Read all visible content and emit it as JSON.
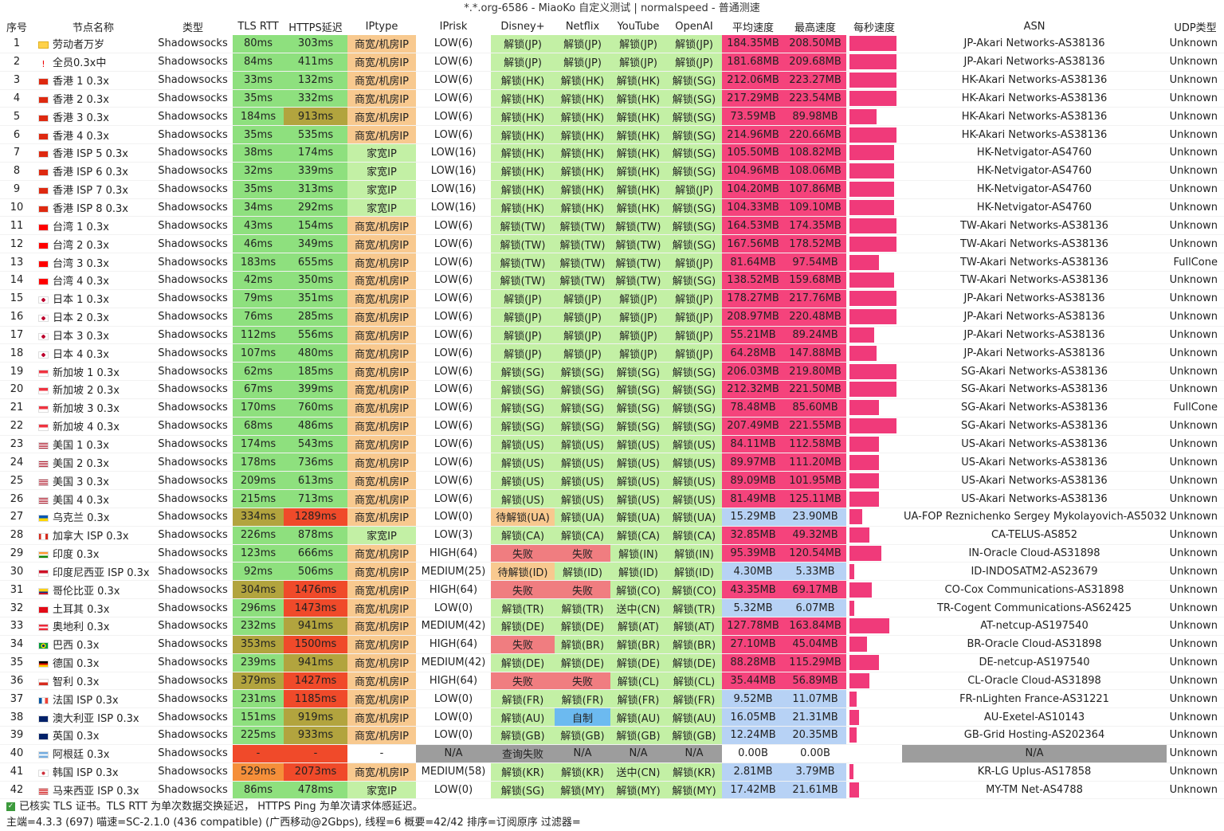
{
  "window": {
    "title": "*.*.org-6586 - MiaoKo 自定义测试 | normalspeed - 普通测速"
  },
  "headers": [
    "序号",
    "节点名称",
    "类型",
    "TLS RTT",
    "HTTPS延迟",
    "IPtype",
    "IPrisk",
    "Disney+",
    "Netflix",
    "YouTube",
    "OpenAI",
    "平均速度",
    "最高速度",
    "每秒速度",
    "ASN",
    "UDP类型"
  ],
  "colors": {
    "green": "#8ee07e",
    "light_green": "#c3f0a5",
    "orange_light": "#f8c98f",
    "orange": "#f58f3a",
    "red": "#f04a2a",
    "olive": "#b2a43e",
    "pink": "#f5437c",
    "light_blue": "#b7d2f5",
    "blue": "#6cbaf0",
    "fail_red": "#f07d80",
    "gray": "#9d9d9d",
    "white": "#ffffff",
    "spark": "#f03a7a"
  },
  "rows": [
    {
      "id": "1",
      "name": "劳动者万岁",
      "flag": "ok-icon",
      "type": "Shadowsocks",
      "tls": "80ms",
      "https": "303ms",
      "iptype": "商宽/机房IP",
      "iprisk": "LOW(6)",
      "disney": "解锁(JP)",
      "netflix": "解锁(JP)",
      "youtube": "解锁(JP)",
      "openai": "解锁(JP)",
      "avg": "184.35MB",
      "max": "208.50MB",
      "spark": 0.95,
      "asn": "JP-Akari Networks-AS38136",
      "udp": "Unknown"
    },
    {
      "id": "2",
      "name": "全员0.3x中",
      "flag": "warn-icon",
      "type": "Shadowsocks",
      "tls": "84ms",
      "https": "411ms",
      "iptype": "商宽/机房IP",
      "iprisk": "LOW(6)",
      "disney": "解锁(JP)",
      "netflix": "解锁(JP)",
      "youtube": "解锁(JP)",
      "openai": "解锁(JP)",
      "avg": "181.68MB",
      "max": "209.68MB",
      "spark": 0.95,
      "asn": "JP-Akari Networks-AS38136",
      "udp": "Unknown"
    },
    {
      "id": "3",
      "name": "香港 1 0.3x",
      "flag": "hk-flag-icon",
      "type": "Shadowsocks",
      "tls": "33ms",
      "https": "132ms",
      "iptype": "商宽/机房IP",
      "iprisk": "LOW(6)",
      "disney": "解锁(HK)",
      "netflix": "解锁(HK)",
      "youtube": "解锁(HK)",
      "openai": "解锁(SG)",
      "avg": "212.06MB",
      "max": "223.27MB",
      "spark": 0.95,
      "asn": "HK-Akari Networks-AS38136",
      "udp": "Unknown"
    },
    {
      "id": "4",
      "name": "香港 2 0.3x",
      "flag": "hk-flag-icon",
      "type": "Shadowsocks",
      "tls": "35ms",
      "https": "332ms",
      "iptype": "商宽/机房IP",
      "iprisk": "LOW(6)",
      "disney": "解锁(HK)",
      "netflix": "解锁(HK)",
      "youtube": "解锁(HK)",
      "openai": "解锁(SG)",
      "avg": "217.29MB",
      "max": "223.54MB",
      "spark": 0.95,
      "asn": "HK-Akari Networks-AS38136",
      "udp": "Unknown"
    },
    {
      "id": "5",
      "name": "香港 3 0.3x",
      "flag": "hk-flag-icon",
      "type": "Shadowsocks",
      "tls": "184ms",
      "https": "913ms",
      "iptype": "商宽/机房IP",
      "iprisk": "LOW(6)",
      "disney": "解锁(HK)",
      "netflix": "解锁(HK)",
      "youtube": "解锁(HK)",
      "openai": "解锁(SG)",
      "avg": "73.59MB",
      "max": "89.98MB",
      "spark": 0.55,
      "asn": "HK-Akari Networks-AS38136",
      "udp": "Unknown"
    },
    {
      "id": "6",
      "name": "香港 4 0.3x",
      "flag": "hk-flag-icon",
      "type": "Shadowsocks",
      "tls": "35ms",
      "https": "535ms",
      "iptype": "商宽/机房IP",
      "iprisk": "LOW(6)",
      "disney": "解锁(HK)",
      "netflix": "解锁(HK)",
      "youtube": "解锁(HK)",
      "openai": "解锁(SG)",
      "avg": "214.96MB",
      "max": "220.66MB",
      "spark": 0.95,
      "asn": "HK-Akari Networks-AS38136",
      "udp": "Unknown"
    },
    {
      "id": "7",
      "name": "香港 ISP 5 0.3x",
      "flag": "hk-flag-icon",
      "type": "Shadowsocks",
      "tls": "38ms",
      "https": "174ms",
      "iptype": "家宽IP",
      "iprisk": "LOW(16)",
      "disney": "解锁(HK)",
      "netflix": "解锁(HK)",
      "youtube": "解锁(HK)",
      "openai": "解锁(SG)",
      "avg": "105.50MB",
      "max": "108.82MB",
      "spark": 0.9,
      "asn": "HK-Netvigator-AS4760",
      "udp": "Unknown"
    },
    {
      "id": "8",
      "name": "香港 ISP 6  0.3x",
      "flag": "hk-flag-icon",
      "type": "Shadowsocks",
      "tls": "32ms",
      "https": "339ms",
      "iptype": "家宽IP",
      "iprisk": "LOW(16)",
      "disney": "解锁(HK)",
      "netflix": "解锁(HK)",
      "youtube": "解锁(HK)",
      "openai": "解锁(SG)",
      "avg": "104.96MB",
      "max": "108.06MB",
      "spark": 0.9,
      "asn": "HK-Netvigator-AS4760",
      "udp": "Unknown"
    },
    {
      "id": "9",
      "name": "香港 ISP 7 0.3x",
      "flag": "hk-flag-icon",
      "type": "Shadowsocks",
      "tls": "35ms",
      "https": "313ms",
      "iptype": "家宽IP",
      "iprisk": "LOW(16)",
      "disney": "解锁(HK)",
      "netflix": "解锁(HK)",
      "youtube": "解锁(HK)",
      "openai": "解锁(JP)",
      "avg": "104.20MB",
      "max": "107.86MB",
      "spark": 0.9,
      "asn": "HK-Netvigator-AS4760",
      "udp": "Unknown"
    },
    {
      "id": "10",
      "name": "香港 ISP 8 0.3x",
      "flag": "hk-flag-icon",
      "type": "Shadowsocks",
      "tls": "34ms",
      "https": "292ms",
      "iptype": "家宽IP",
      "iprisk": "LOW(16)",
      "disney": "解锁(HK)",
      "netflix": "解锁(HK)",
      "youtube": "解锁(HK)",
      "openai": "解锁(SG)",
      "avg": "104.33MB",
      "max": "109.10MB",
      "spark": 0.9,
      "asn": "HK-Netvigator-AS4760",
      "udp": "Unknown"
    },
    {
      "id": "11",
      "name": "台湾 1 0.3x",
      "flag": "tw-flag-icon",
      "type": "Shadowsocks",
      "tls": "43ms",
      "https": "154ms",
      "iptype": "商宽/机房IP",
      "iprisk": "LOW(6)",
      "disney": "解锁(TW)",
      "netflix": "解锁(TW)",
      "youtube": "解锁(TW)",
      "openai": "解锁(SG)",
      "avg": "164.53MB",
      "max": "174.35MB",
      "spark": 0.95,
      "asn": "TW-Akari Networks-AS38136",
      "udp": "Unknown"
    },
    {
      "id": "12",
      "name": "台湾 2 0.3x",
      "flag": "tw-flag-icon",
      "type": "Shadowsocks",
      "tls": "46ms",
      "https": "349ms",
      "iptype": "商宽/机房IP",
      "iprisk": "LOW(6)",
      "disney": "解锁(TW)",
      "netflix": "解锁(TW)",
      "youtube": "解锁(TW)",
      "openai": "解锁(SG)",
      "avg": "167.56MB",
      "max": "178.52MB",
      "spark": 0.95,
      "asn": "TW-Akari Networks-AS38136",
      "udp": "Unknown"
    },
    {
      "id": "13",
      "name": "台湾 3 0.3x",
      "flag": "tw-flag-icon",
      "type": "Shadowsocks",
      "tls": "183ms",
      "https": "655ms",
      "iptype": "商宽/机房IP",
      "iprisk": "LOW(6)",
      "disney": "解锁(TW)",
      "netflix": "解锁(TW)",
      "youtube": "解锁(TW)",
      "openai": "解锁(JP)",
      "avg": "81.64MB",
      "max": "97.54MB",
      "spark": 0.6,
      "asn": "TW-Akari Networks-AS38136",
      "udp": "FullCone"
    },
    {
      "id": "14",
      "name": "台湾 4 0.3x",
      "flag": "tw-flag-icon",
      "type": "Shadowsocks",
      "tls": "42ms",
      "https": "350ms",
      "iptype": "商宽/机房IP",
      "iprisk": "LOW(6)",
      "disney": "解锁(TW)",
      "netflix": "解锁(TW)",
      "youtube": "解锁(TW)",
      "openai": "解锁(SG)",
      "avg": "138.52MB",
      "max": "159.68MB",
      "spark": 0.9,
      "asn": "TW-Akari Networks-AS38136",
      "udp": "Unknown"
    },
    {
      "id": "15",
      "name": "日本 1 0.3x",
      "flag": "jp-flag-icon",
      "type": "Shadowsocks",
      "tls": "79ms",
      "https": "351ms",
      "iptype": "商宽/机房IP",
      "iprisk": "LOW(6)",
      "disney": "解锁(JP)",
      "netflix": "解锁(JP)",
      "youtube": "解锁(JP)",
      "openai": "解锁(JP)",
      "avg": "178.27MB",
      "max": "217.76MB",
      "spark": 0.95,
      "asn": "JP-Akari Networks-AS38136",
      "udp": "Unknown"
    },
    {
      "id": "16",
      "name": "日本 2 0.3x",
      "flag": "jp-flag-icon",
      "type": "Shadowsocks",
      "tls": "76ms",
      "https": "285ms",
      "iptype": "商宽/机房IP",
      "iprisk": "LOW(6)",
      "disney": "解锁(JP)",
      "netflix": "解锁(JP)",
      "youtube": "解锁(JP)",
      "openai": "解锁(JP)",
      "avg": "208.97MB",
      "max": "220.48MB",
      "spark": 0.95,
      "asn": "JP-Akari Networks-AS38136",
      "udp": "Unknown"
    },
    {
      "id": "17",
      "name": "日本 3 0.3x",
      "flag": "jp-flag-icon",
      "type": "Shadowsocks",
      "tls": "112ms",
      "https": "556ms",
      "iptype": "商宽/机房IP",
      "iprisk": "LOW(6)",
      "disney": "解锁(JP)",
      "netflix": "解锁(JP)",
      "youtube": "解锁(JP)",
      "openai": "解锁(JP)",
      "avg": "55.21MB",
      "max": "89.24MB",
      "spark": 0.5,
      "asn": "JP-Akari Networks-AS38136",
      "udp": "Unknown"
    },
    {
      "id": "18",
      "name": "日本 4 0.3x",
      "flag": "jp-flag-icon",
      "type": "Shadowsocks",
      "tls": "107ms",
      "https": "480ms",
      "iptype": "商宽/机房IP",
      "iprisk": "LOW(6)",
      "disney": "解锁(JP)",
      "netflix": "解锁(JP)",
      "youtube": "解锁(JP)",
      "openai": "解锁(JP)",
      "avg": "64.28MB",
      "max": "147.88MB",
      "spark": 0.55,
      "asn": "JP-Akari Networks-AS38136",
      "udp": "Unknown"
    },
    {
      "id": "19",
      "name": "新加坡 1 0.3x",
      "flag": "sg-flag-icon",
      "type": "Shadowsocks",
      "tls": "62ms",
      "https": "185ms",
      "iptype": "商宽/机房IP",
      "iprisk": "LOW(6)",
      "disney": "解锁(SG)",
      "netflix": "解锁(SG)",
      "youtube": "解锁(SG)",
      "openai": "解锁(SG)",
      "avg": "206.03MB",
      "max": "219.80MB",
      "spark": 0.95,
      "asn": "SG-Akari Networks-AS38136",
      "udp": "Unknown"
    },
    {
      "id": "20",
      "name": "新加坡 2 0.3x",
      "flag": "sg-flag-icon",
      "type": "Shadowsocks",
      "tls": "67ms",
      "https": "399ms",
      "iptype": "商宽/机房IP",
      "iprisk": "LOW(6)",
      "disney": "解锁(SG)",
      "netflix": "解锁(SG)",
      "youtube": "解锁(SG)",
      "openai": "解锁(SG)",
      "avg": "212.32MB",
      "max": "221.50MB",
      "spark": 0.95,
      "asn": "SG-Akari Networks-AS38136",
      "udp": "Unknown"
    },
    {
      "id": "21",
      "name": "新加坡 3 0.3x",
      "flag": "sg-flag-icon",
      "type": "Shadowsocks",
      "tls": "170ms",
      "https": "760ms",
      "iptype": "商宽/机房IP",
      "iprisk": "LOW(6)",
      "disney": "解锁(SG)",
      "netflix": "解锁(SG)",
      "youtube": "解锁(SG)",
      "openai": "解锁(SG)",
      "avg": "78.48MB",
      "max": "85.60MB",
      "spark": 0.6,
      "asn": "SG-Akari Networks-AS38136",
      "udp": "FullCone"
    },
    {
      "id": "22",
      "name": "新加坡 4 0.3x",
      "flag": "sg-flag-icon",
      "type": "Shadowsocks",
      "tls": "68ms",
      "https": "486ms",
      "iptype": "商宽/机房IP",
      "iprisk": "LOW(6)",
      "disney": "解锁(SG)",
      "netflix": "解锁(SG)",
      "youtube": "解锁(SG)",
      "openai": "解锁(SG)",
      "avg": "207.49MB",
      "max": "221.55MB",
      "spark": 0.95,
      "asn": "SG-Akari Networks-AS38136",
      "udp": "Unknown"
    },
    {
      "id": "23",
      "name": "美国 1 0.3x",
      "flag": "us-flag-icon",
      "type": "Shadowsocks",
      "tls": "174ms",
      "https": "543ms",
      "iptype": "商宽/机房IP",
      "iprisk": "LOW(6)",
      "disney": "解锁(US)",
      "netflix": "解锁(US)",
      "youtube": "解锁(US)",
      "openai": "解锁(US)",
      "avg": "84.11MB",
      "max": "112.58MB",
      "spark": 0.6,
      "asn": "US-Akari Networks-AS38136",
      "udp": "Unknown"
    },
    {
      "id": "24",
      "name": "美国 2 0.3x",
      "flag": "us-flag-icon",
      "type": "Shadowsocks",
      "tls": "178ms",
      "https": "736ms",
      "iptype": "商宽/机房IP",
      "iprisk": "LOW(6)",
      "disney": "解锁(US)",
      "netflix": "解锁(US)",
      "youtube": "解锁(US)",
      "openai": "解锁(US)",
      "avg": "89.97MB",
      "max": "111.20MB",
      "spark": 0.6,
      "asn": "US-Akari Networks-AS38136",
      "udp": "Unknown"
    },
    {
      "id": "25",
      "name": "美国 3 0.3x",
      "flag": "us-flag-icon",
      "type": "Shadowsocks",
      "tls": "209ms",
      "https": "613ms",
      "iptype": "商宽/机房IP",
      "iprisk": "LOW(6)",
      "disney": "解锁(US)",
      "netflix": "解锁(US)",
      "youtube": "解锁(US)",
      "openai": "解锁(US)",
      "avg": "89.09MB",
      "max": "101.95MB",
      "spark": 0.6,
      "asn": "US-Akari Networks-AS38136",
      "udp": "Unknown"
    },
    {
      "id": "26",
      "name": "美国 4 0.3x",
      "flag": "us-flag-icon",
      "type": "Shadowsocks",
      "tls": "215ms",
      "https": "713ms",
      "iptype": "商宽/机房IP",
      "iprisk": "LOW(6)",
      "disney": "解锁(US)",
      "netflix": "解锁(US)",
      "youtube": "解锁(US)",
      "openai": "解锁(US)",
      "avg": "81.49MB",
      "max": "125.11MB",
      "spark": 0.6,
      "asn": "US-Akari Networks-AS38136",
      "udp": "Unknown"
    },
    {
      "id": "27",
      "name": "乌克兰 0.3x",
      "flag": "ua-flag-icon",
      "type": "Shadowsocks",
      "tls": "334ms",
      "https": "1289ms",
      "iptype": "商宽/机房IP",
      "iprisk": "LOW(0)",
      "disney": "待解锁(UA)",
      "netflix": "解锁(UA)",
      "youtube": "解锁(UA)",
      "openai": "解锁(UA)",
      "avg": "15.29MB",
      "max": "23.90MB",
      "spark": 0.25,
      "asn": "UA-FOP Reznichenko Sergey Mykolayovich-AS50321",
      "udp": "Unknown"
    },
    {
      "id": "28",
      "name": "加拿大 ISP 0.3x",
      "flag": "ca-flag-icon",
      "type": "Shadowsocks",
      "tls": "226ms",
      "https": "878ms",
      "iptype": "家宽IP",
      "iprisk": "LOW(3)",
      "disney": "解锁(CA)",
      "netflix": "解锁(CA)",
      "youtube": "解锁(CA)",
      "openai": "解锁(CA)",
      "avg": "32.85MB",
      "max": "49.32MB",
      "spark": 0.4,
      "asn": "CA-TELUS-AS852",
      "udp": "Unknown"
    },
    {
      "id": "29",
      "name": "印度 0.3x",
      "flag": "in-flag-icon",
      "type": "Shadowsocks",
      "tls": "123ms",
      "https": "666ms",
      "iptype": "商宽/机房IP",
      "iprisk": "HIGH(64)",
      "disney": "失败",
      "netflix": "失败",
      "youtube": "解锁(IN)",
      "openai": "解锁(IN)",
      "avg": "95.39MB",
      "max": "120.54MB",
      "spark": 0.65,
      "asn": "IN-Oracle Cloud-AS31898",
      "udp": "Unknown"
    },
    {
      "id": "30",
      "name": "印度尼西亚 ISP 0.3x",
      "flag": "id-flag-icon",
      "type": "Shadowsocks",
      "tls": "92ms",
      "https": "506ms",
      "iptype": "商宽/机房IP",
      "iprisk": "MEDIUM(25)",
      "disney": "待解锁(ID)",
      "netflix": "解锁(ID)",
      "youtube": "解锁(ID)",
      "openai": "解锁(ID)",
      "avg": "4.30MB",
      "max": "5.33MB",
      "spark": 0.1,
      "asn": "ID-INDOSATM2-AS23679",
      "udp": "Unknown"
    },
    {
      "id": "31",
      "name": "哥伦比亚 0.3x",
      "flag": "co-flag-icon",
      "type": "Shadowsocks",
      "tls": "304ms",
      "https": "1476ms",
      "iptype": "商宽/机房IP",
      "iprisk": "HIGH(64)",
      "disney": "失败",
      "netflix": "失败",
      "youtube": "解锁(CO)",
      "openai": "解锁(CO)",
      "avg": "43.35MB",
      "max": "69.17MB",
      "spark": 0.45,
      "asn": "CO-Cox Communications-AS31898",
      "udp": "Unknown"
    },
    {
      "id": "32",
      "name": "土耳其 0.3x",
      "flag": "tr-flag-icon",
      "type": "Shadowsocks",
      "tls": "296ms",
      "https": "1473ms",
      "iptype": "商宽/机房IP",
      "iprisk": "LOW(0)",
      "disney": "解锁(TR)",
      "netflix": "解锁(TR)",
      "youtube": "送中(CN)",
      "openai": "解锁(TR)",
      "avg": "5.32MB",
      "max": "6.07MB",
      "spark": 0.1,
      "asn": "TR-Cogent Communications-AS62425",
      "udp": "Unknown"
    },
    {
      "id": "33",
      "name": "奥地利 0.3x",
      "flag": "at-flag-icon",
      "type": "Shadowsocks",
      "tls": "232ms",
      "https": "941ms",
      "iptype": "商宽/机房IP",
      "iprisk": "MEDIUM(42)",
      "disney": "解锁(DE)",
      "netflix": "解锁(DE)",
      "youtube": "解锁(AT)",
      "openai": "解锁(AT)",
      "avg": "127.78MB",
      "max": "163.84MB",
      "spark": 0.8,
      "asn": "AT-netcup-AS197540",
      "udp": "Unknown"
    },
    {
      "id": "34",
      "name": "巴西 0.3x",
      "flag": "br-flag-icon",
      "type": "Shadowsocks",
      "tls": "353ms",
      "https": "1500ms",
      "iptype": "商宽/机房IP",
      "iprisk": "HIGH(64)",
      "disney": "失败",
      "netflix": "解锁(BR)",
      "youtube": "解锁(BR)",
      "openai": "解锁(BR)",
      "avg": "27.10MB",
      "max": "45.04MB",
      "spark": 0.35,
      "asn": "BR-Oracle Cloud-AS31898",
      "udp": "Unknown"
    },
    {
      "id": "35",
      "name": "德国 0.3x",
      "flag": "de-flag-icon",
      "type": "Shadowsocks",
      "tls": "239ms",
      "https": "941ms",
      "iptype": "商宽/机房IP",
      "iprisk": "MEDIUM(42)",
      "disney": "解锁(DE)",
      "netflix": "解锁(DE)",
      "youtube": "解锁(DE)",
      "openai": "解锁(DE)",
      "avg": "88.28MB",
      "max": "115.29MB",
      "spark": 0.6,
      "asn": "DE-netcup-AS197540",
      "udp": "Unknown"
    },
    {
      "id": "36",
      "name": "智利 0.3x",
      "flag": "cl-flag-icon",
      "type": "Shadowsocks",
      "tls": "379ms",
      "https": "1427ms",
      "iptype": "商宽/机房IP",
      "iprisk": "HIGH(64)",
      "disney": "失败",
      "netflix": "失败",
      "youtube": "解锁(CL)",
      "openai": "解锁(CL)",
      "avg": "35.44MB",
      "max": "56.89MB",
      "spark": 0.4,
      "asn": "CL-Oracle Cloud-AS31898",
      "udp": "Unknown"
    },
    {
      "id": "37",
      "name": "法国 ISP 0.3x",
      "flag": "fr-flag-icon",
      "type": "Shadowsocks",
      "tls": "231ms",
      "https": "1185ms",
      "iptype": "商宽/机房IP",
      "iprisk": "LOW(0)",
      "disney": "解锁(FR)",
      "netflix": "解锁(FR)",
      "youtube": "解锁(FR)",
      "openai": "解锁(FR)",
      "avg": "9.52MB",
      "max": "11.07MB",
      "spark": 0.15,
      "asn": "FR-nLighten France-AS31221",
      "udp": "Unknown"
    },
    {
      "id": "38",
      "name": "澳大利亚 ISP 0.3x",
      "flag": "au-flag-icon",
      "type": "Shadowsocks",
      "tls": "151ms",
      "https": "919ms",
      "iptype": "商宽/机房IP",
      "iprisk": "LOW(0)",
      "disney": "解锁(AU)",
      "netflix": "自制",
      "youtube": "解锁(AU)",
      "openai": "解锁(AU)",
      "avg": "16.05MB",
      "max": "21.31MB",
      "spark": 0.2,
      "asn": "AU-Exetel-AS10143",
      "udp": "Unknown"
    },
    {
      "id": "39",
      "name": "英国 0.3x",
      "flag": "gb-flag-icon",
      "type": "Shadowsocks",
      "tls": "225ms",
      "https": "933ms",
      "iptype": "商宽/机房IP",
      "iprisk": "LOW(0)",
      "disney": "解锁(GB)",
      "netflix": "解锁(GB)",
      "youtube": "解锁(GB)",
      "openai": "解锁(GB)",
      "avg": "12.24MB",
      "max": "20.35MB",
      "spark": 0.15,
      "asn": "GB-Grid Hosting-AS202364",
      "udp": "Unknown"
    },
    {
      "id": "40",
      "name": "阿根廷 0.3x",
      "flag": "ar-flag-icon",
      "type": "Shadowsocks",
      "tls": "-",
      "https": "-",
      "iptype": "-",
      "iprisk": "N/A",
      "disney": "查询失败",
      "netflix": "N/A",
      "youtube": "N/A",
      "openai": "N/A",
      "avg": "0.00B",
      "max": "0.00B",
      "spark": 0,
      "asn": "N/A",
      "udp": "Unknown"
    },
    {
      "id": "41",
      "name": "韩国 ISP 0.3x",
      "flag": "kr-flag-icon",
      "type": "Shadowsocks",
      "tls": "529ms",
      "https": "2073ms",
      "iptype": "商宽/机房IP",
      "iprisk": "MEDIUM(58)",
      "disney": "解锁(KR)",
      "netflix": "解锁(KR)",
      "youtube": "送中(CN)",
      "openai": "解锁(KR)",
      "avg": "2.81MB",
      "max": "3.79MB",
      "spark": 0.08,
      "asn": "KR-LG Uplus-AS17858",
      "udp": "Unknown"
    },
    {
      "id": "42",
      "name": "马来西亚 ISP 0.3x",
      "flag": "my-flag-icon",
      "type": "Shadowsocks",
      "tls": "86ms",
      "https": "478ms",
      "iptype": "家宽IP",
      "iprisk": "LOW(0)",
      "disney": "解锁(SG)",
      "netflix": "解锁(MY)",
      "youtube": "解锁(MY)",
      "openai": "解锁(MY)",
      "avg": "17.42MB",
      "max": "21.61MB",
      "spark": 0.2,
      "asn": "MY-TM Net-AS4788",
      "udp": "Unknown"
    }
  ],
  "footer": {
    "line1": "已核实 TLS 证书。TLS RTT 为单次数据交换延迟， HTTPS Ping 为单次请求体感延迟。",
    "line2": "主端=4.3.3 (697) 喵速=SC-2.1.0 (436 compatible) (广西移动@2Gbps), 线程=6 概要=42/42 排序=订阅原序 过滤器="
  }
}
